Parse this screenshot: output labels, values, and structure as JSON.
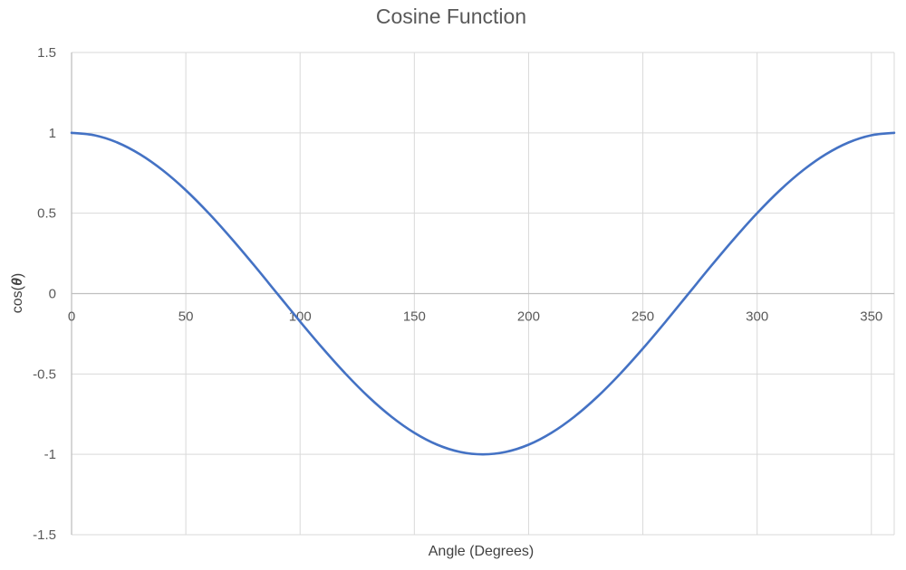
{
  "chart_data": {
    "type": "line",
    "title": "Cosine Function",
    "xlabel": "Angle (Degrees)",
    "ylabel_prefix": "cos(",
    "ylabel_symbol": "θ",
    "ylabel_suffix": ")",
    "xlim": [
      0,
      360
    ],
    "ylim": [
      -1.5,
      1.5
    ],
    "x_ticks": [
      0,
      50,
      100,
      150,
      200,
      250,
      300,
      350
    ],
    "y_ticks": [
      -1.5,
      -1,
      -0.5,
      0,
      0.5,
      1,
      1.5
    ],
    "y_tick_labels": [
      "-1.5",
      "-1",
      "-0.5",
      "0",
      "0.5",
      "1",
      "1.5"
    ],
    "grid": true,
    "legend": "none",
    "series": [
      {
        "color": "#4472C4",
        "x": [
          0,
          10,
          20,
          30,
          40,
          50,
          60,
          70,
          80,
          90,
          100,
          110,
          120,
          130,
          140,
          150,
          160,
          170,
          180,
          190,
          200,
          210,
          220,
          230,
          240,
          250,
          260,
          270,
          280,
          290,
          300,
          310,
          320,
          330,
          340,
          350,
          360
        ],
        "y": [
          1,
          0.985,
          0.94,
          0.866,
          0.766,
          0.643,
          0.5,
          0.342,
          0.174,
          0,
          -0.174,
          -0.342,
          -0.5,
          -0.643,
          -0.766,
          -0.866,
          -0.94,
          -0.985,
          -1,
          -0.985,
          -0.94,
          -0.866,
          -0.766,
          -0.643,
          -0.5,
          -0.342,
          -0.174,
          0,
          0.174,
          0.342,
          0.5,
          0.643,
          0.766,
          0.866,
          0.94,
          0.985,
          1
        ]
      }
    ]
  }
}
